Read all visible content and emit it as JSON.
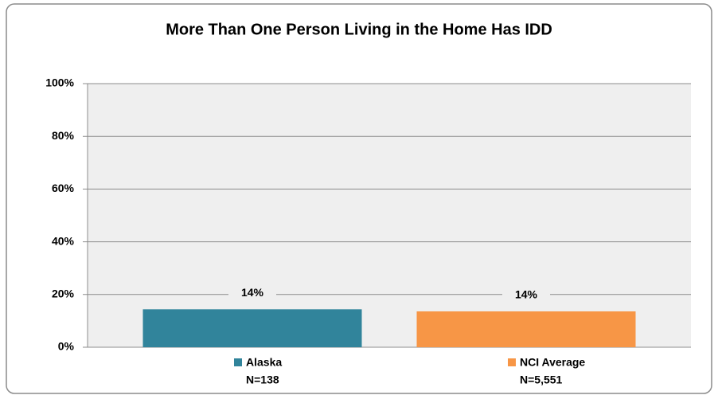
{
  "chart_data": {
    "type": "bar",
    "title": "More Than One Person Living in the Home Has IDD",
    "categories": [
      "Alaska",
      "NCI Average"
    ],
    "category_notes": [
      "N=138",
      "N=5,551"
    ],
    "values": [
      14.4,
      13.6
    ],
    "value_labels": [
      "14%",
      "14%"
    ],
    "colors": [
      "#31849b",
      "#f79646"
    ],
    "ylim": [
      0,
      100
    ],
    "yticks": [
      {
        "value": 0,
        "label": "0%"
      },
      {
        "value": 20,
        "label": "20%"
      },
      {
        "value": 40,
        "label": "40%"
      },
      {
        "value": 60,
        "label": "60%"
      },
      {
        "value": 80,
        "label": "80%"
      },
      {
        "value": 100,
        "label": "100%"
      }
    ],
    "grid": true
  }
}
